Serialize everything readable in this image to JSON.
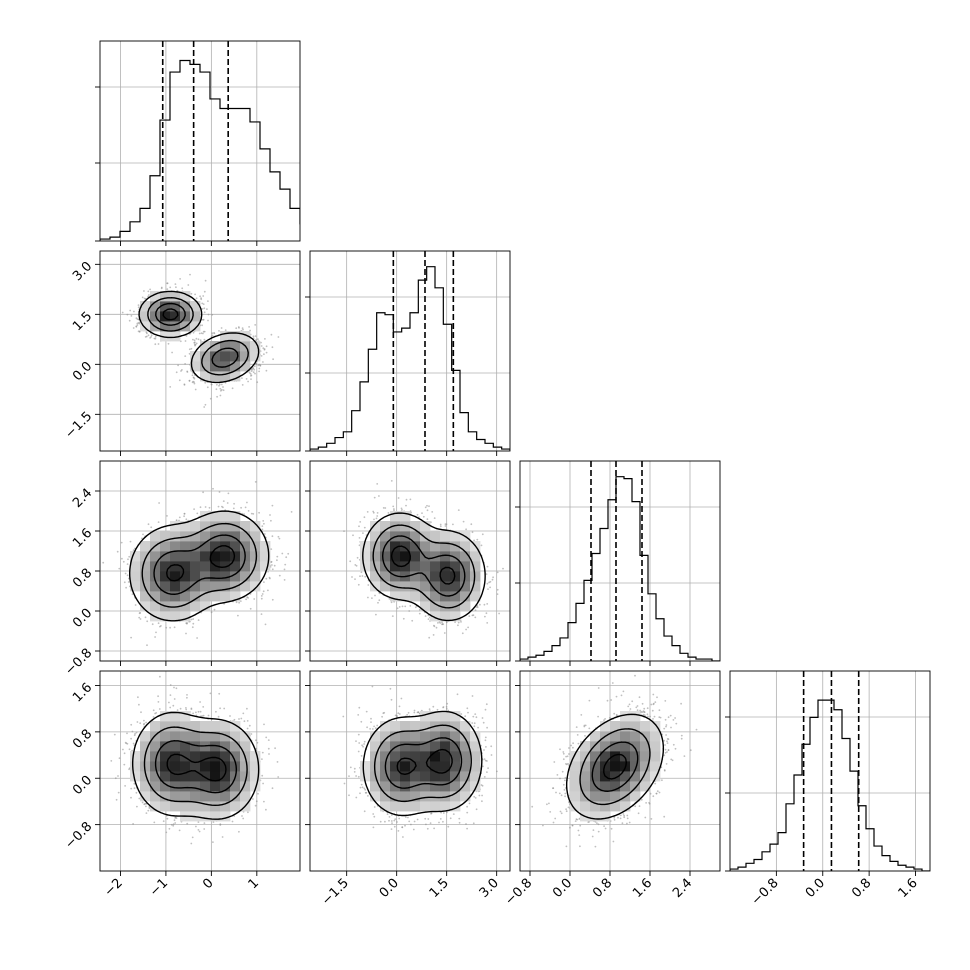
{
  "chart_data": {
    "type": "corner",
    "grid": true,
    "axis_tick_labels": {
      "x": [
        [
          "−2",
          "−1",
          "0",
          "1"
        ],
        [
          "−1.5",
          "0.0",
          "1.5",
          "3.0"
        ],
        [
          "−0.8",
          "0.0",
          "0.8",
          "1.6",
          "2.4"
        ],
        [
          "−0.8",
          "0.0",
          "0.8",
          "1.6"
        ]
      ],
      "y": [
        null,
        [
          "−1.5",
          "0.0",
          "1.5",
          "3.0"
        ],
        [
          "−0.8",
          "0.0",
          "0.8",
          "1.6",
          "2.4"
        ],
        [
          "−0.8",
          "0.0",
          "0.8",
          "1.6"
        ]
      ]
    },
    "parameters": [
      {
        "range": [
          -2.45,
          1.95
        ],
        "ticks": [
          -2,
          -1,
          0,
          1
        ],
        "quantiles": [
          -1.07,
          -0.39,
          0.37
        ],
        "hist_edges_start": -2.45,
        "hist_bin_width": 0.22,
        "hist_counts": [
          0.01,
          0.02,
          0.05,
          0.1,
          0.17,
          0.34,
          0.63,
          0.88,
          0.94,
          0.92,
          0.88,
          0.74,
          0.69,
          0.69,
          0.69,
          0.62,
          0.48,
          0.36,
          0.27,
          0.17,
          0.09,
          0.04
        ]
      },
      {
        "range": [
          -2.6,
          3.4
        ],
        "ticks": [
          -1.5,
          0.0,
          1.5,
          3.0
        ],
        "quantiles": [
          -0.1,
          0.85,
          1.7
        ],
        "hist_edges_start": -2.6,
        "hist_bin_width": 0.25,
        "hist_counts": [
          0.01,
          0.02,
          0.04,
          0.07,
          0.1,
          0.21,
          0.36,
          0.53,
          0.72,
          0.71,
          0.62,
          0.64,
          0.72,
          0.89,
          0.96,
          0.85,
          0.66,
          0.42,
          0.2,
          0.1,
          0.06,
          0.04,
          0.02,
          0.01
        ]
      },
      {
        "range": [
          -1.0,
          3.0
        ],
        "ticks": [
          -0.8,
          0.0,
          0.8,
          1.6,
          2.4
        ],
        "quantiles": [
          0.42,
          0.92,
          1.44
        ],
        "hist_edges_start": -1.0,
        "hist_bin_width": 0.16,
        "hist_counts": [
          0.01,
          0.02,
          0.03,
          0.05,
          0.08,
          0.12,
          0.2,
          0.3,
          0.42,
          0.56,
          0.69,
          0.84,
          0.96,
          0.95,
          0.83,
          0.55,
          0.35,
          0.22,
          0.13,
          0.08,
          0.04,
          0.02,
          0.01,
          0.01,
          0.0
        ]
      },
      {
        "range": [
          -1.6,
          1.85
        ],
        "ticks": [
          -0.8,
          0.0,
          0.8,
          1.6
        ],
        "quantiles": [
          -0.33,
          0.15,
          0.62
        ],
        "hist_edges_start": -1.6,
        "hist_bin_width": 0.138,
        "hist_counts": [
          0.01,
          0.02,
          0.04,
          0.06,
          0.1,
          0.14,
          0.2,
          0.35,
          0.5,
          0.66,
          0.8,
          0.89,
          0.89,
          0.84,
          0.69,
          0.52,
          0.34,
          0.22,
          0.13,
          0.08,
          0.05,
          0.03,
          0.02,
          0.01,
          0.0
        ]
      }
    ],
    "pair_distributions": {
      "1-0": {
        "components": [
          {
            "mean": [
              -0.9,
              1.5
            ],
            "sd": [
              0.32,
              0.32
            ],
            "rho": 0.0,
            "weight": 0.5
          },
          {
            "mean": [
              0.3,
              0.2
            ],
            "sd": [
              0.36,
              0.36
            ],
            "rho": 0.25,
            "weight": 0.5
          }
        ]
      },
      "2-0": {
        "components": [
          {
            "mean": [
              -0.85,
              0.75
            ],
            "sd": [
              0.45,
              0.45
            ],
            "rho": 0.0,
            "weight": 0.5
          },
          {
            "mean": [
              0.3,
              1.1
            ],
            "sd": [
              0.45,
              0.42
            ],
            "rho": 0.0,
            "weight": 0.5
          }
        ]
      },
      "3-0": {
        "components": [
          {
            "mean": [
              -0.85,
              0.25
            ],
            "sd": [
              0.42,
              0.42
            ],
            "rho": 0.0,
            "weight": 0.5
          },
          {
            "mean": [
              0.15,
              0.15
            ],
            "sd": [
              0.42,
              0.4
            ],
            "rho": 0.0,
            "weight": 0.5
          }
        ]
      },
      "2-1": {
        "components": [
          {
            "mean": [
              0.1,
              1.1
            ],
            "sd": [
              0.52,
              0.4
            ],
            "rho": 0.0,
            "weight": 0.5
          },
          {
            "mean": [
              1.55,
              0.7
            ],
            "sd": [
              0.52,
              0.42
            ],
            "rho": 0.0,
            "weight": 0.5
          }
        ]
      },
      "3-1": {
        "components": [
          {
            "mean": [
              0.15,
              0.2
            ],
            "sd": [
              0.55,
              0.4
            ],
            "rho": 0.0,
            "weight": 0.5
          },
          {
            "mean": [
              1.45,
              0.3
            ],
            "sd": [
              0.52,
              0.4
            ],
            "rho": 0.0,
            "weight": 0.5
          }
        ]
      },
      "3-2": {
        "components": [
          {
            "mean": [
              0.9,
              0.2
            ],
            "sd": [
              0.45,
              0.42
            ],
            "rho": 0.35,
            "weight": 1.0
          }
        ]
      }
    }
  }
}
